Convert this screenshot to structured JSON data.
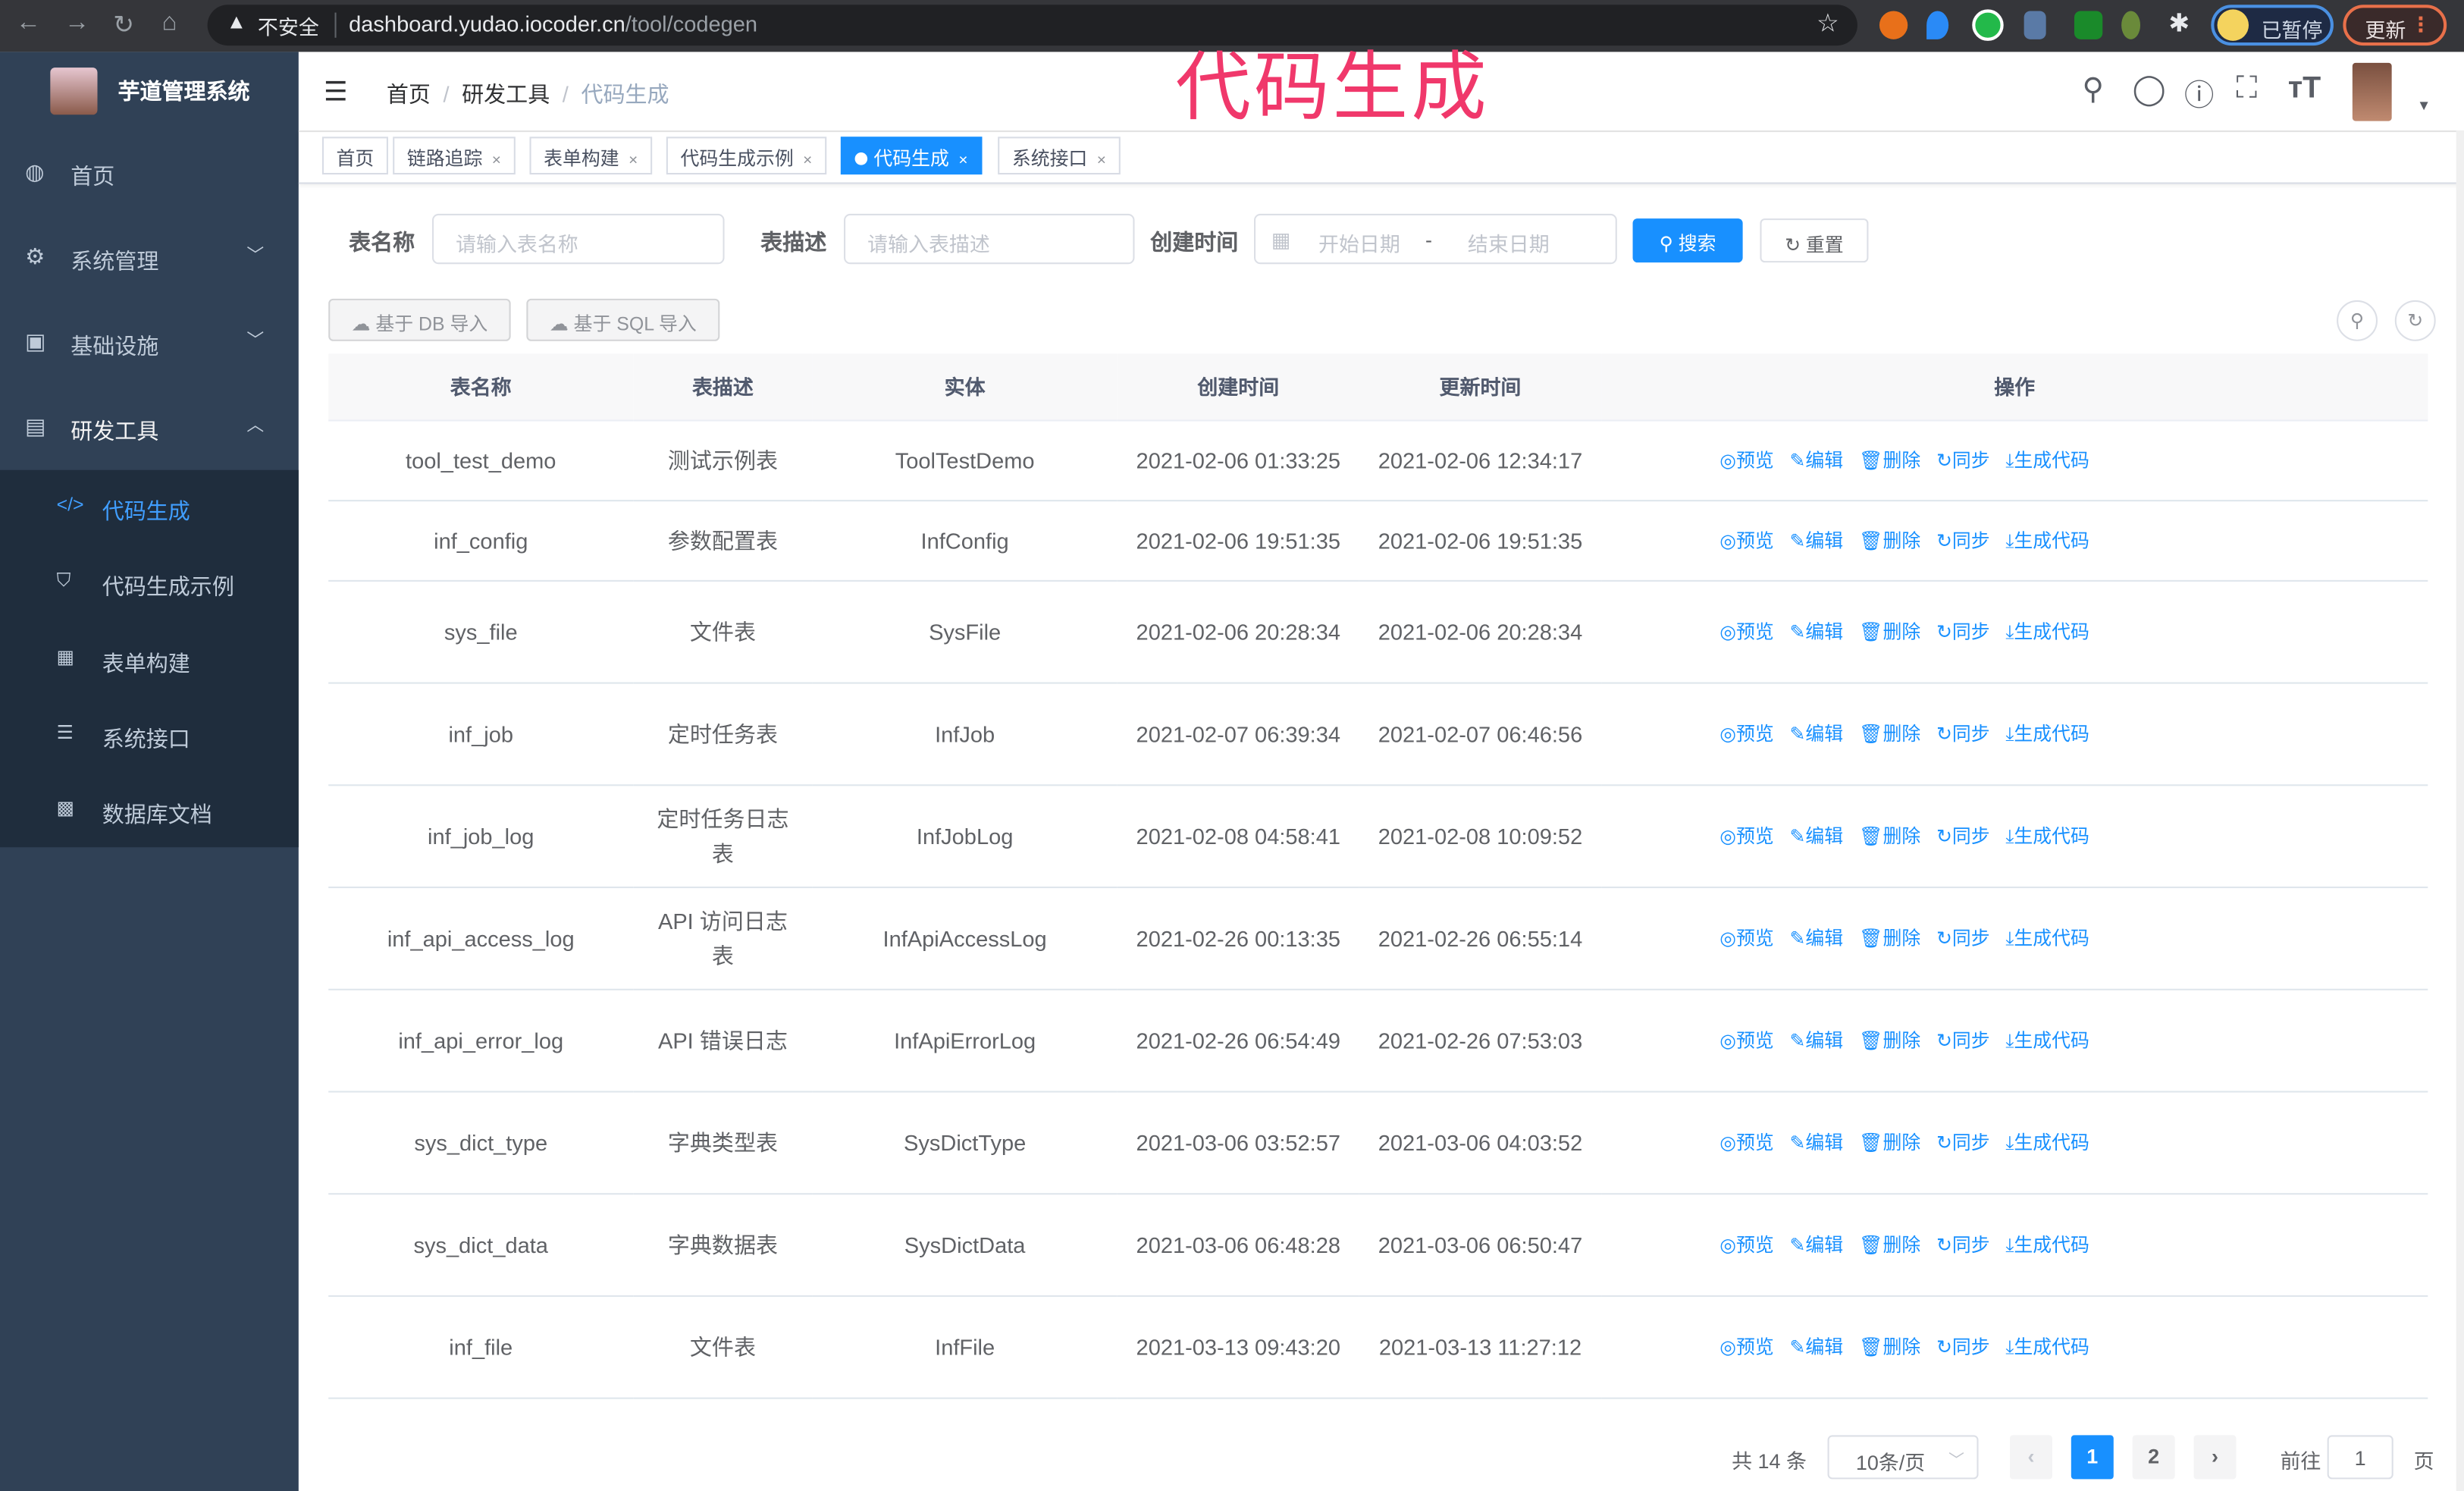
{
  "browser": {
    "insecure_label": "不安全",
    "url_host": "dashboard.yudao.iocoder.cn",
    "url_path": "/tool/codegen",
    "paused_label": "已暂停",
    "update_label": "更新"
  },
  "overlay_title": "代码生成",
  "sidebar": {
    "title": "芋道管理系统",
    "items": [
      {
        "label": "首页",
        "icon": "dashboard-icon"
      },
      {
        "label": "系统管理",
        "icon": "gear-icon"
      },
      {
        "label": "基础设施",
        "icon": "monitor-icon"
      },
      {
        "label": "研发工具",
        "icon": "toolbox-icon"
      }
    ],
    "subitems": [
      {
        "label": "代码生成",
        "icon": "code-icon",
        "active": true
      },
      {
        "label": "代码生成示例",
        "icon": "shield-icon"
      },
      {
        "label": "表单构建",
        "icon": "form-icon"
      },
      {
        "label": "系统接口",
        "icon": "sliders-icon"
      },
      {
        "label": "数据库文档",
        "icon": "table-icon"
      }
    ]
  },
  "breadcrumb": [
    "首页",
    "研发工具",
    "代码生成"
  ],
  "tags": [
    "首页",
    "链路追踪",
    "表单构建",
    "代码生成示例",
    "代码生成",
    "系统接口"
  ],
  "search": {
    "table_name_label": "表名称",
    "table_name_placeholder": "请输入表名称",
    "table_desc_label": "表描述",
    "table_desc_placeholder": "请输入表描述",
    "created_label": "创建时间",
    "start_placeholder": "开始日期",
    "range_sep": "-",
    "end_placeholder": "结束日期",
    "search_btn": "搜索",
    "reset_btn": "重置"
  },
  "toolbar": {
    "import_db": "基于 DB 导入",
    "import_sql": "基于 SQL 导入"
  },
  "table": {
    "columns": [
      "表名称",
      "表描述",
      "实体",
      "创建时间",
      "更新时间",
      "操作"
    ],
    "actions": [
      "预览",
      "编辑",
      "删除",
      "同步",
      "生成代码"
    ],
    "rows": [
      [
        "tool_test_demo",
        "测试示例表",
        "ToolTestDemo",
        "2021-02-06 01:33:25",
        "2021-02-06 12:34:17"
      ],
      [
        "inf_config",
        "参数配置表",
        "InfConfig",
        "2021-02-06 19:51:35",
        "2021-02-06 19:51:35"
      ],
      [
        "sys_file",
        "文件表",
        "SysFile",
        "2021-02-06 20:28:34",
        "2021-02-06 20:28:34"
      ],
      [
        "inf_job",
        "定时任务表",
        "InfJob",
        "2021-02-07 06:39:34",
        "2021-02-07 06:46:56"
      ],
      [
        "inf_job_log",
        "定时任务日志表",
        "InfJobLog",
        "2021-02-08 04:58:41",
        "2021-02-08 10:09:52"
      ],
      [
        "inf_api_access_log",
        "API 访问日志表",
        "InfApiAccessLog",
        "2021-02-26 00:13:35",
        "2021-02-26 06:55:14"
      ],
      [
        "inf_api_error_log",
        "API 错误日志",
        "InfApiErrorLog",
        "2021-02-26 06:54:49",
        "2021-02-26 07:53:03"
      ],
      [
        "sys_dict_type",
        "字典类型表",
        "SysDictType",
        "2021-03-06 03:52:57",
        "2021-03-06 04:03:52"
      ],
      [
        "sys_dict_data",
        "字典数据表",
        "SysDictData",
        "2021-03-06 06:48:28",
        "2021-03-06 06:50:47"
      ],
      [
        "inf_file",
        "文件表",
        "InfFile",
        "2021-03-13 09:43:20",
        "2021-03-13 11:27:12"
      ]
    ]
  },
  "pagination": {
    "total": "共 14 条",
    "page_size": "10条/页",
    "pages": [
      "1",
      "2"
    ],
    "current": "1",
    "goto_label": "前往",
    "goto_value": "1",
    "page_suffix": "页"
  },
  "colors": {
    "primary": "#1890ff",
    "sidebar_bg": "#304156",
    "submenu_bg": "#1f2d3d",
    "overlay": "#f0386b"
  }
}
